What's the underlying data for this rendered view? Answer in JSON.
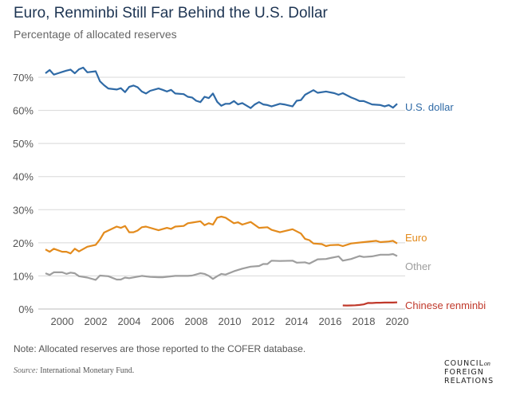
{
  "header": {
    "title": "Euro, Renminbi Still Far Behind the U.S. Dollar",
    "subtitle": "Percentage of allocated reserves"
  },
  "footer": {
    "note": "Note: Allocated reserves are those reported to the COFER database.",
    "source_label": "Source:",
    "source_text": "International Monetary Fund.",
    "logo": {
      "line1": "COUNCIL",
      "on": "on",
      "line2": "FOREIGN",
      "line3": "RELATIONS"
    }
  },
  "chart_data": {
    "type": "line",
    "title": "Euro, Renminbi Still Far Behind the U.S. Dollar",
    "subtitle": "Percentage of allocated reserves",
    "xlabel": "",
    "ylabel": "",
    "xlim": [
      1999,
      2020
    ],
    "ylim": [
      0,
      70
    ],
    "grid": true,
    "legend": "inline-right",
    "x_ticks": [
      "2000",
      "2002",
      "2004",
      "2006",
      "2008",
      "2010",
      "2012",
      "2014",
      "2016",
      "2018",
      "2020"
    ],
    "y_ticks": [
      "0%",
      "10%",
      "20%",
      "30%",
      "40%",
      "50%",
      "60%",
      "70%"
    ],
    "series": [
      {
        "name": "U.S. dollar",
        "color": "#2f6aa6",
        "points": [
          [
            1999.0,
            71.2
          ],
          [
            1999.25,
            72.2
          ],
          [
            1999.5,
            70.8
          ],
          [
            1999.75,
            71.2
          ],
          [
            2000.0,
            71.6
          ],
          [
            2000.25,
            72.0
          ],
          [
            2000.5,
            72.3
          ],
          [
            2000.75,
            71.2
          ],
          [
            2001.0,
            72.4
          ],
          [
            2001.25,
            72.9
          ],
          [
            2001.5,
            71.5
          ],
          [
            2002.0,
            71.8
          ],
          [
            2002.25,
            68.8
          ],
          [
            2002.5,
            67.6
          ],
          [
            2002.75,
            66.6
          ],
          [
            2003.25,
            66.3
          ],
          [
            2003.5,
            66.7
          ],
          [
            2003.75,
            65.5
          ],
          [
            2004.0,
            67.1
          ],
          [
            2004.25,
            67.5
          ],
          [
            2004.5,
            67.0
          ],
          [
            2004.75,
            65.7
          ],
          [
            2005.0,
            65.1
          ],
          [
            2005.25,
            65.9
          ],
          [
            2005.75,
            66.6
          ],
          [
            2006.0,
            66.2
          ],
          [
            2006.25,
            65.7
          ],
          [
            2006.5,
            66.2
          ],
          [
            2006.75,
            65.1
          ],
          [
            2007.25,
            64.9
          ],
          [
            2007.5,
            64.1
          ],
          [
            2007.75,
            63.9
          ],
          [
            2008.0,
            62.9
          ],
          [
            2008.25,
            62.5
          ],
          [
            2008.5,
            64.1
          ],
          [
            2008.75,
            63.7
          ],
          [
            2009.0,
            65.1
          ],
          [
            2009.25,
            62.6
          ],
          [
            2009.5,
            61.4
          ],
          [
            2009.75,
            62.0
          ],
          [
            2010.0,
            62.0
          ],
          [
            2010.25,
            62.8
          ],
          [
            2010.5,
            61.8
          ],
          [
            2010.75,
            62.2
          ],
          [
            2011.25,
            60.7
          ],
          [
            2011.5,
            61.8
          ],
          [
            2011.75,
            62.5
          ],
          [
            2012.0,
            61.8
          ],
          [
            2012.25,
            61.6
          ],
          [
            2012.5,
            61.2
          ],
          [
            2013.0,
            62.0
          ],
          [
            2013.25,
            61.8
          ],
          [
            2013.75,
            61.2
          ],
          [
            2014.0,
            62.9
          ],
          [
            2014.25,
            63.1
          ],
          [
            2014.5,
            64.7
          ],
          [
            2015.0,
            66.1
          ],
          [
            2015.25,
            65.3
          ],
          [
            2015.75,
            65.7
          ],
          [
            2016.25,
            65.2
          ],
          [
            2016.5,
            64.7
          ],
          [
            2016.75,
            65.2
          ],
          [
            2017.25,
            63.9
          ],
          [
            2017.5,
            63.4
          ],
          [
            2017.75,
            62.8
          ],
          [
            2018.0,
            62.8
          ],
          [
            2018.5,
            61.8
          ],
          [
            2019.0,
            61.6
          ],
          [
            2019.25,
            61.2
          ],
          [
            2019.5,
            61.6
          ],
          [
            2019.75,
            60.8
          ],
          [
            2020.0,
            62.0
          ]
        ]
      },
      {
        "name": "Euro",
        "color": "#e38b1d",
        "points": [
          [
            1999.0,
            18.0
          ],
          [
            1999.25,
            17.3
          ],
          [
            1999.5,
            18.2
          ],
          [
            2000.0,
            17.3
          ],
          [
            2000.25,
            17.3
          ],
          [
            2000.5,
            16.8
          ],
          [
            2000.75,
            18.2
          ],
          [
            2001.0,
            17.4
          ],
          [
            2001.5,
            18.8
          ],
          [
            2002.0,
            19.4
          ],
          [
            2002.25,
            21.0
          ],
          [
            2002.5,
            23.1
          ],
          [
            2003.0,
            24.3
          ],
          [
            2003.25,
            24.9
          ],
          [
            2003.5,
            24.5
          ],
          [
            2003.75,
            25.1
          ],
          [
            2004.0,
            23.2
          ],
          [
            2004.25,
            23.2
          ],
          [
            2004.5,
            23.7
          ],
          [
            2004.75,
            24.7
          ],
          [
            2005.0,
            24.9
          ],
          [
            2005.75,
            23.8
          ],
          [
            2006.25,
            24.5
          ],
          [
            2006.5,
            24.2
          ],
          [
            2006.75,
            24.9
          ],
          [
            2007.25,
            25.1
          ],
          [
            2007.5,
            25.9
          ],
          [
            2007.75,
            26.1
          ],
          [
            2008.25,
            26.5
          ],
          [
            2008.5,
            25.3
          ],
          [
            2008.75,
            25.9
          ],
          [
            2009.0,
            25.5
          ],
          [
            2009.25,
            27.6
          ],
          [
            2009.5,
            27.9
          ],
          [
            2009.75,
            27.6
          ],
          [
            2010.25,
            25.9
          ],
          [
            2010.5,
            26.2
          ],
          [
            2010.75,
            25.5
          ],
          [
            2011.25,
            26.3
          ],
          [
            2011.75,
            24.5
          ],
          [
            2012.25,
            24.7
          ],
          [
            2012.5,
            23.9
          ],
          [
            2013.0,
            23.2
          ],
          [
            2013.75,
            24.1
          ],
          [
            2014.25,
            22.8
          ],
          [
            2014.5,
            21.2
          ],
          [
            2014.75,
            20.8
          ],
          [
            2015.0,
            19.8
          ],
          [
            2015.5,
            19.6
          ],
          [
            2015.75,
            19.0
          ],
          [
            2016.0,
            19.3
          ],
          [
            2016.5,
            19.4
          ],
          [
            2016.75,
            19.0
          ],
          [
            2017.25,
            19.8
          ],
          [
            2018.0,
            20.2
          ],
          [
            2018.75,
            20.6
          ],
          [
            2019.0,
            20.2
          ],
          [
            2019.5,
            20.4
          ],
          [
            2019.75,
            20.6
          ],
          [
            2020.0,
            19.8
          ]
        ]
      },
      {
        "name": "Other",
        "color": "#9e9e9e",
        "points": [
          [
            1999.0,
            10.8
          ],
          [
            1999.25,
            10.3
          ],
          [
            1999.5,
            11.1
          ],
          [
            2000.0,
            11.1
          ],
          [
            2000.25,
            10.6
          ],
          [
            2000.5,
            11.0
          ],
          [
            2000.75,
            10.8
          ],
          [
            2001.0,
            9.9
          ],
          [
            2001.5,
            9.5
          ],
          [
            2002.0,
            8.8
          ],
          [
            2002.25,
            10.1
          ],
          [
            2002.75,
            9.9
          ],
          [
            2003.25,
            8.9
          ],
          [
            2003.5,
            8.9
          ],
          [
            2003.75,
            9.5
          ],
          [
            2004.0,
            9.3
          ],
          [
            2004.75,
            10.0
          ],
          [
            2005.25,
            9.7
          ],
          [
            2005.75,
            9.6
          ],
          [
            2006.0,
            9.6
          ],
          [
            2006.75,
            10.0
          ],
          [
            2007.5,
            10.0
          ],
          [
            2007.75,
            10.1
          ],
          [
            2008.25,
            10.8
          ],
          [
            2008.5,
            10.6
          ],
          [
            2008.75,
            10.0
          ],
          [
            2009.0,
            9.1
          ],
          [
            2009.25,
            9.9
          ],
          [
            2009.5,
            10.6
          ],
          [
            2009.75,
            10.4
          ],
          [
            2010.25,
            11.4
          ],
          [
            2010.75,
            12.2
          ],
          [
            2011.25,
            12.8
          ],
          [
            2011.75,
            13.0
          ],
          [
            2012.0,
            13.6
          ],
          [
            2012.25,
            13.6
          ],
          [
            2012.5,
            14.6
          ],
          [
            2013.0,
            14.5
          ],
          [
            2013.75,
            14.6
          ],
          [
            2014.0,
            14.0
          ],
          [
            2014.5,
            14.1
          ],
          [
            2014.75,
            13.7
          ],
          [
            2015.25,
            15.0
          ],
          [
            2015.75,
            15.1
          ],
          [
            2016.0,
            15.4
          ],
          [
            2016.5,
            15.9
          ],
          [
            2016.75,
            14.6
          ],
          [
            2017.25,
            15.1
          ],
          [
            2017.75,
            16.0
          ],
          [
            2018.0,
            15.7
          ],
          [
            2018.5,
            15.9
          ],
          [
            2019.0,
            16.4
          ],
          [
            2019.5,
            16.4
          ],
          [
            2019.75,
            16.6
          ],
          [
            2020.0,
            16.0
          ]
        ]
      },
      {
        "name": "Chinese renminbi",
        "color": "#c0392b",
        "points": [
          [
            2016.75,
            1.08
          ],
          [
            2017.0,
            1.07
          ],
          [
            2017.25,
            1.08
          ],
          [
            2017.5,
            1.12
          ],
          [
            2017.75,
            1.23
          ],
          [
            2018.0,
            1.39
          ],
          [
            2018.25,
            1.84
          ],
          [
            2018.5,
            1.8
          ],
          [
            2018.75,
            1.89
          ],
          [
            2019.0,
            1.89
          ],
          [
            2019.25,
            1.95
          ],
          [
            2019.5,
            1.97
          ],
          [
            2019.75,
            1.94
          ],
          [
            2020.0,
            2.02
          ]
        ]
      }
    ]
  }
}
